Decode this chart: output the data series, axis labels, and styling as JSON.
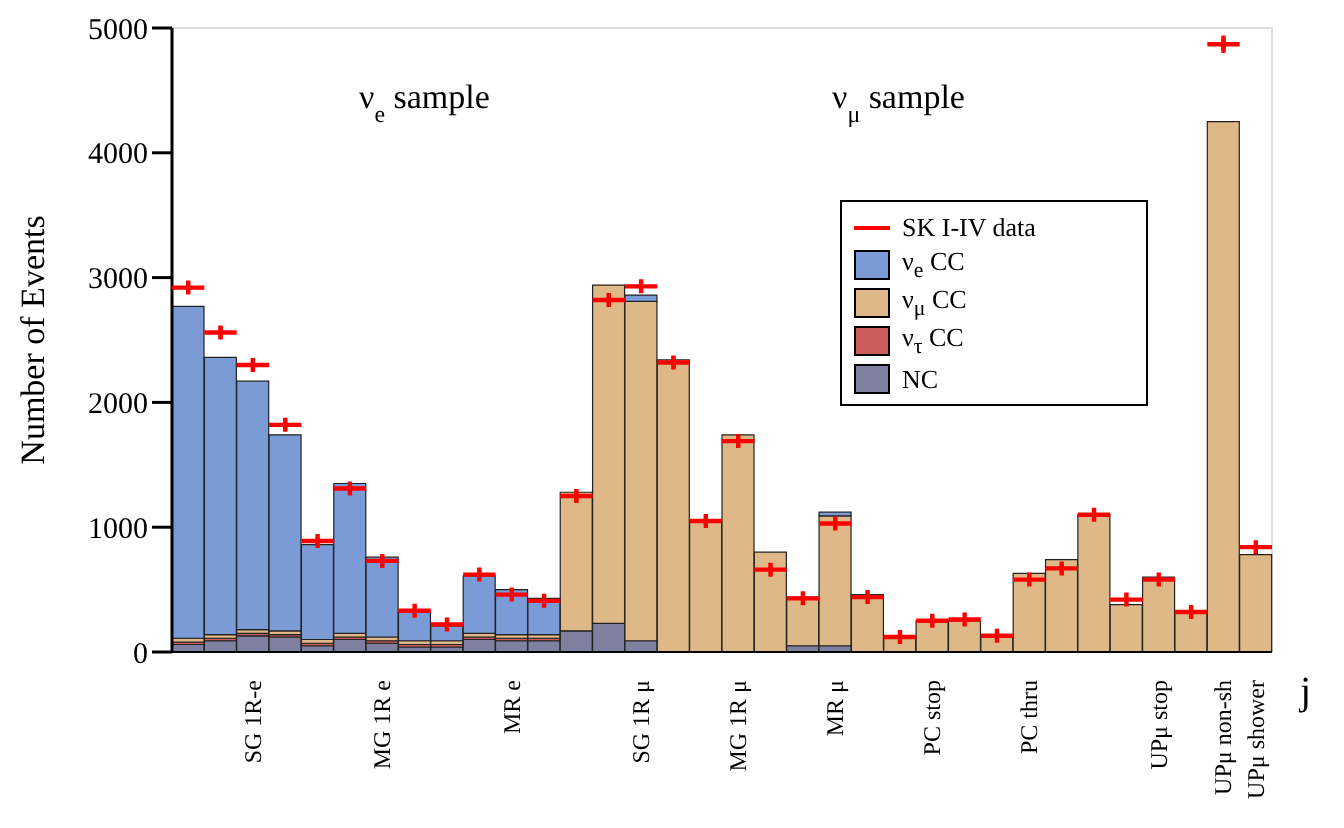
{
  "chart_data": {
    "type": "bar",
    "stacked": true,
    "ylabel": "Number of Events",
    "xlabel": "j",
    "categories": [
      null,
      null,
      "SG 1R-e",
      null,
      null,
      null,
      "MG 1R e",
      null,
      null,
      null,
      "MR e",
      null,
      null,
      null,
      "SG 1R μ",
      null,
      null,
      "MG 1R μ",
      null,
      null,
      "MR μ",
      null,
      null,
      "PC stop",
      null,
      null,
      "PC thru",
      null,
      null,
      null,
      "UPμ stop",
      null,
      "UPμ non-sh",
      "UPμ shower"
    ],
    "series": [
      {
        "name": "NC",
        "color": "#7f7f9f",
        "values": [
          60,
          90,
          130,
          120,
          50,
          100,
          70,
          40,
          40,
          100,
          90,
          90,
          170,
          230,
          90,
          0,
          0,
          0,
          0,
          50,
          50,
          0,
          0,
          0,
          0,
          0,
          0,
          0,
          0,
          0,
          0,
          0,
          0,
          0
        ]
      },
      {
        "name": "ν$_{τ}$ CC",
        "color": "#cd5c5c",
        "values": [
          20,
          20,
          20,
          20,
          20,
          20,
          20,
          20,
          20,
          20,
          20,
          20,
          0,
          0,
          0,
          0,
          0,
          0,
          0,
          0,
          0,
          0,
          0,
          0,
          0,
          0,
          0,
          0,
          0,
          0,
          0,
          0,
          0,
          0
        ]
      },
      {
        "name": "ν$_{μ}$ CC",
        "color": "#deb887",
        "values": [
          30,
          30,
          30,
          30,
          30,
          30,
          30,
          30,
          30,
          30,
          30,
          30,
          1110,
          2710,
          2720,
          2340,
          1050,
          1740,
          800,
          390,
          1040,
          460,
          120,
          250,
          250,
          130,
          630,
          740,
          1100,
          380,
          600,
          320,
          4250,
          780
        ]
      },
      {
        "name": "ν$_{e}$ CC",
        "color": "#7b9bd6",
        "values": [
          2660,
          2220,
          1990,
          1570,
          760,
          1200,
          640,
          230,
          120,
          460,
          360,
          290,
          0,
          0,
          50,
          0,
          0,
          0,
          0,
          0,
          30,
          0,
          0,
          0,
          0,
          0,
          0,
          0,
          0,
          0,
          0,
          0,
          0,
          0
        ]
      },
      {
        "name": "SK I-IV data",
        "type": "scatter",
        "color": "#ff0000",
        "values": [
          2920,
          2560,
          2300,
          1820,
          890,
          1310,
          730,
          330,
          220,
          620,
          460,
          410,
          1250,
          2820,
          2930,
          2320,
          1050,
          1690,
          660,
          430,
          1030,
          440,
          120,
          250,
          260,
          130,
          580,
          670,
          1100,
          420,
          580,
          320,
          4870,
          840
        ],
        "errors": [
          50,
          50,
          50,
          40,
          30,
          40,
          30,
          20,
          20,
          30,
          20,
          20,
          40,
          50,
          50,
          50,
          30,
          40,
          30,
          20,
          30,
          20,
          10,
          20,
          20,
          10,
          20,
          30,
          30,
          20,
          20,
          20,
          70,
          30
        ]
      }
    ],
    "marker": "cross",
    "ylim": [
      0,
      5000
    ],
    "yticks": [
      0,
      1000,
      2000,
      3000,
      4000,
      5000
    ],
    "grid": false,
    "legend": "top right",
    "annotations": [
      "ν$_{e}$ sample",
      "ν$_{μ}$ sample"
    ]
  }
}
